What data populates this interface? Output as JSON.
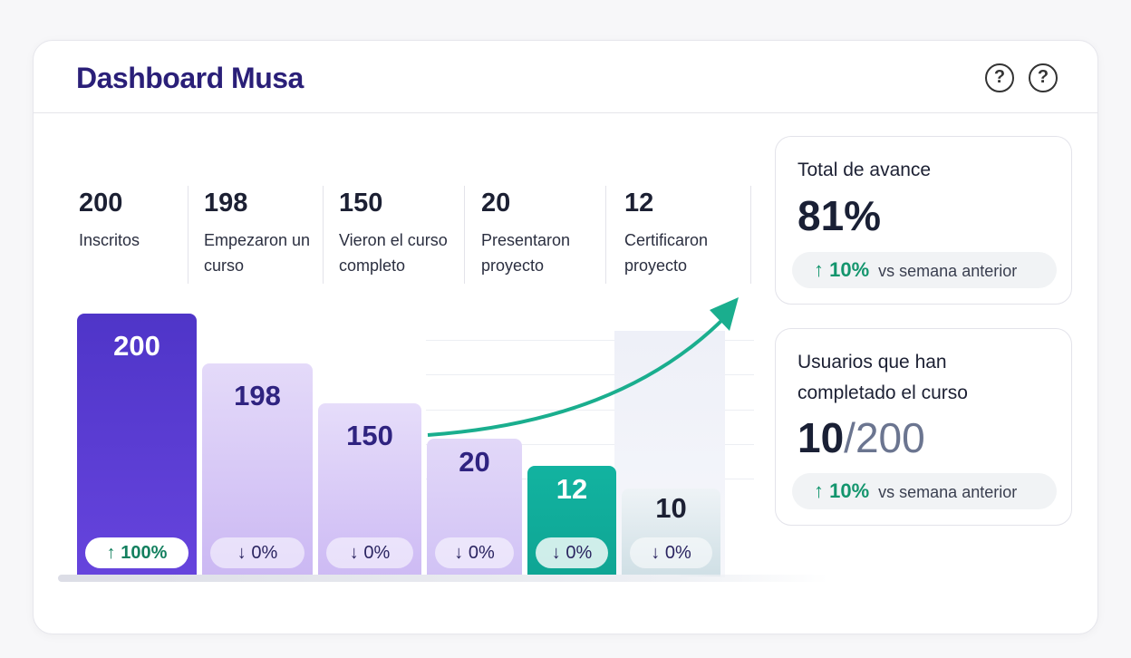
{
  "header": {
    "title": "Dashboard Musa",
    "help_icon": "?"
  },
  "stats": [
    {
      "value": "200",
      "label": "Inscritos"
    },
    {
      "value": "198",
      "label": "Empezaron un curso"
    },
    {
      "value": "150",
      "label": "Vieron el curso completo"
    },
    {
      "value": "20",
      "label": "Presentaron proyecto"
    },
    {
      "value": "12",
      "label": "Certificaron proyecto"
    }
  ],
  "funnel": {
    "bars": [
      {
        "value": "200",
        "change": "↑ 100%"
      },
      {
        "value": "198",
        "change": "↓ 0%"
      },
      {
        "value": "150",
        "change": "↓ 0%"
      },
      {
        "value": "20",
        "change": "↓ 0%"
      },
      {
        "value": "12",
        "change": "↓ 0%"
      },
      {
        "value": "10",
        "change": "↓ 0%"
      }
    ],
    "colors": {
      "primary": "#5a3fd6",
      "light": "#d9ccf7",
      "teal": "#17b3a0",
      "muted": "#e2ecf0"
    }
  },
  "progress": {
    "title": "Total de avance",
    "value": "81%",
    "change": "↑ 10%",
    "compare": "vs semana anterior"
  },
  "completed": {
    "title_line1": "Usuarios que han",
    "title_line2": "completado el curso",
    "value": "10",
    "total": "/200",
    "change": "↑ 10%",
    "compare": "vs semana anterior"
  }
}
